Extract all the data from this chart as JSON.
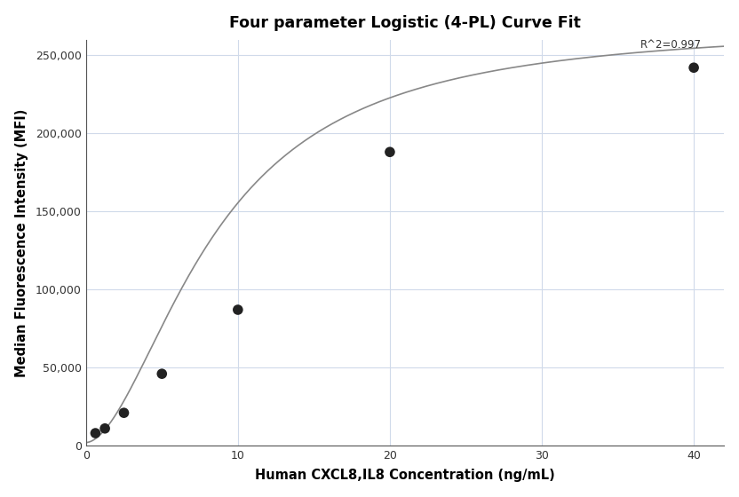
{
  "title": "Four parameter Logistic (4-PL) Curve Fit",
  "xlabel": "Human CXCL8,IL8 Concentration (ng/mL)",
  "ylabel": "Median Fluorescence Intensity (MFI)",
  "scatter_x": [
    0.625,
    1.25,
    2.5,
    5.0,
    10.0,
    20.0,
    40.0
  ],
  "scatter_y": [
    8000,
    11000,
    21000,
    46000,
    87000,
    188000,
    242000
  ],
  "xlim": [
    0,
    42
  ],
  "ylim": [
    0,
    260000
  ],
  "xticks": [
    0,
    10,
    20,
    30,
    40
  ],
  "yticks": [
    0,
    50000,
    100000,
    150000,
    200000,
    250000
  ],
  "ytick_labels": [
    "0",
    "50,000",
    "100,000",
    "150,000",
    "200,000",
    "250,000"
  ],
  "r_squared_text": "R^2=0.997",
  "r_squared_x": 40.5,
  "r_squared_y": 253000,
  "curve_color": "#888888",
  "scatter_color": "#222222",
  "grid_color": "#d0daea",
  "bg_color": "#ffffff",
  "4pl_A": 2000,
  "4pl_B": 1.8,
  "4pl_C": 8.5,
  "4pl_D": 270000
}
